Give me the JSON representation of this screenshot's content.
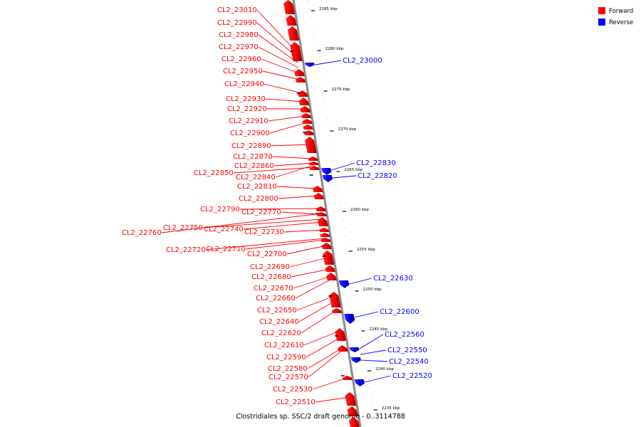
{
  "caption": "Clostridiales sp. SSC/2 draft genome - 0..3114788",
  "legend": [
    {
      "label": "Forward",
      "color": "#ff0000"
    },
    {
      "label": "Reverse",
      "color": "#0000ff"
    }
  ],
  "colors": {
    "forward": "#ff0000",
    "reverse": "#0000ff",
    "backbone": "#888888"
  },
  "ticks": [
    "2285 kbp",
    "2280 kbp",
    "2275 kbp",
    "2270 kbp",
    "2265 kbp",
    "2260 kbp",
    "2255 kbp",
    "2250 kbp",
    "2245 kbp",
    "2240 kbp",
    "2235 kbp"
  ],
  "forward_labels": [
    "CL2_23010",
    "CL2_22990",
    "CL2_22980",
    "CL2_22970",
    "CL2_22960",
    "CL2_22950",
    "CL2_22940",
    "CL2_22930",
    "CL2_22920",
    "CL2_22910",
    "CL2_22900",
    "CL2_22890",
    "CL2_22870",
    "CL2_22860",
    "CL2_22850",
    "CL2_22840",
    "CL2_22810",
    "CL2_22800",
    "CL2_22790",
    "CL2_22770",
    "CL2_22750",
    "CL2_22740",
    "CL2_22760",
    "CL2_22730",
    "CL2_22720",
    "CL2_22710",
    "CL2_22700",
    "CL2_22690",
    "CL2_22680",
    "CL2_22670",
    "CL2_22660",
    "CL2_22650",
    "CL2_22640",
    "CL2_22620",
    "CL2_22610",
    "CL2_22590",
    "CL2_22580",
    "CL2_22570",
    "CL2_22530",
    "CL2_22510"
  ],
  "reverse_labels": [
    "CL2_23000",
    "CL2_22830",
    "CL2_22820",
    "CL2_22630",
    "CL2_22600",
    "CL2_22560",
    "CL2_22550",
    "CL2_22540",
    "CL2_22520"
  ]
}
